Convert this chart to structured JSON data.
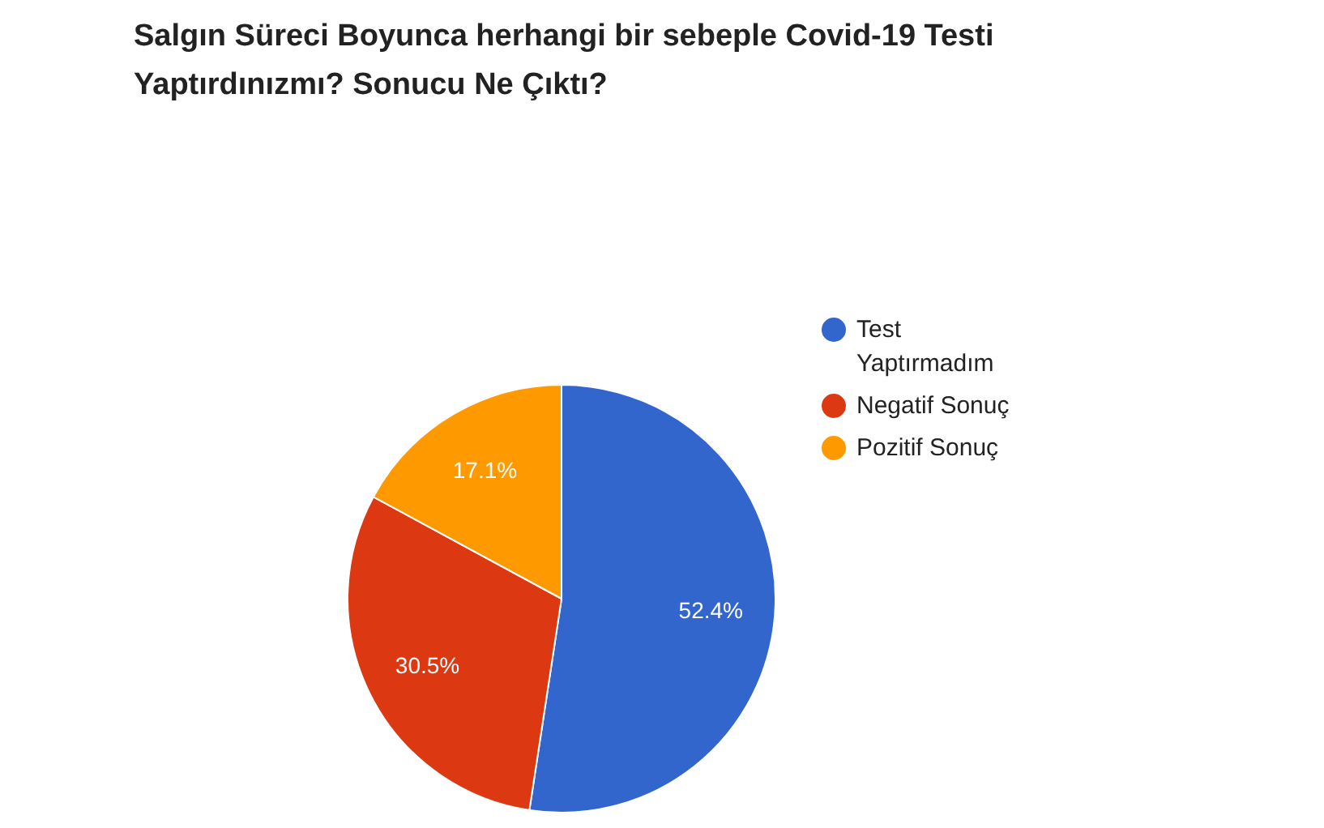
{
  "chart_data": {
    "type": "pie",
    "title": "Salgın Süreci Boyunca herhangi bir sebeple Covid-19 Testi Yaptırdınızmı? Sonucu Ne Çıktı?",
    "categories": [
      "Test Yaptırmadım",
      "Negatif Sonuç",
      "Pozitif Sonuç"
    ],
    "values": [
      52.4,
      30.5,
      17.1
    ],
    "colors": [
      "#3366cc",
      "#dc3912",
      "#ff9900"
    ],
    "value_labels": [
      "52.4%",
      "30.5%",
      "17.1%"
    ],
    "legend": "right"
  }
}
